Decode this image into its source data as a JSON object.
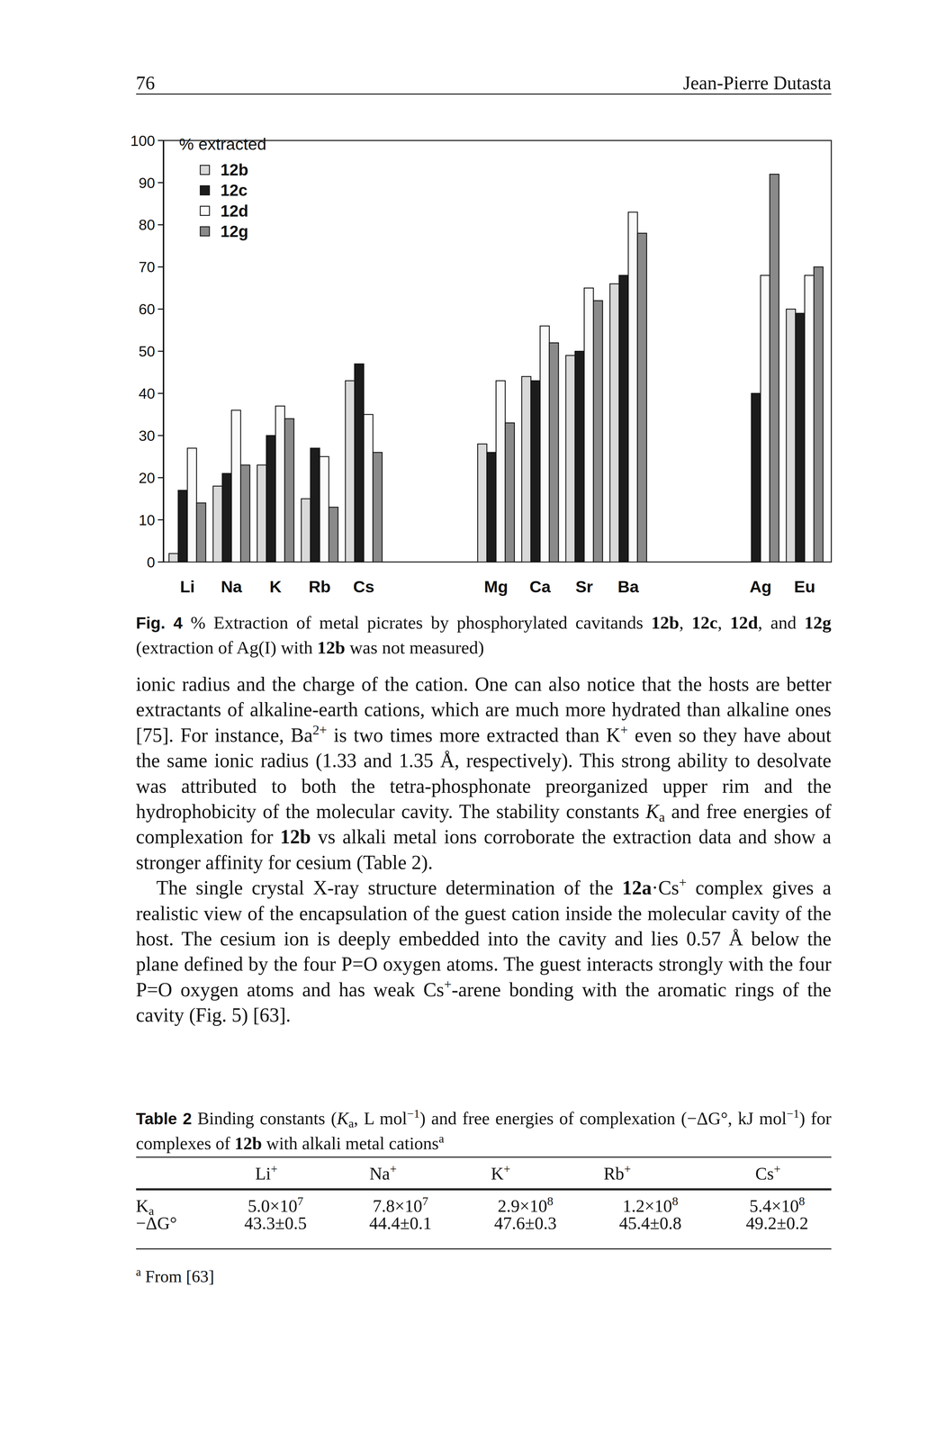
{
  "header": {
    "page": "76",
    "author": "Jean-Pierre Dutasta"
  },
  "chart_data": {
    "type": "bar",
    "y_label": "% extracted",
    "categories": [
      "Li",
      "Na",
      "K",
      "Rb",
      "Cs",
      null,
      null,
      "Mg",
      "Ca",
      "Sr",
      "Ba",
      null,
      null,
      "Ag",
      "Eu"
    ],
    "series": [
      {
        "name": "12b",
        "color": "#d9d9d9",
        "values": [
          2,
          18,
          23,
          15,
          43,
          null,
          null,
          28,
          44,
          49,
          66,
          null,
          null,
          null,
          60
        ]
      },
      {
        "name": "12c",
        "color": "#1c1c1c",
        "values": [
          17,
          21,
          30,
          27,
          47,
          null,
          null,
          26,
          43,
          50,
          68,
          null,
          null,
          40,
          59
        ]
      },
      {
        "name": "12d",
        "color": "#fafafa",
        "values": [
          27,
          36,
          37,
          25,
          35,
          null,
          null,
          43,
          56,
          65,
          83,
          null,
          null,
          68,
          68
        ]
      },
      {
        "name": "12g",
        "color": "#8a8a8a",
        "values": [
          14,
          23,
          34,
          13,
          26,
          null,
          null,
          33,
          52,
          62,
          78,
          null,
          null,
          92,
          70
        ]
      }
    ],
    "ylim": [
      0,
      100
    ],
    "yticks": [
      0,
      10,
      20,
      30,
      40,
      50,
      60,
      70,
      80,
      90,
      100
    ],
    "grid": false,
    "legend": "top-left"
  },
  "figure_caption": [
    {
      "label": "Fig. 4"
    },
    " % Extraction of metal picrates by phosphorylated cavitands ",
    {
      "b": "12b"
    },
    ", ",
    {
      "b": "12c"
    },
    ", ",
    {
      "b": "12d"
    },
    ", and ",
    {
      "b": "12g"
    },
    " (extraction of Ag(I) with ",
    {
      "b": "12b"
    },
    " was not measured)"
  ],
  "paragraphs": [
    [
      "ionic radius and the charge of the cation. One can also notice that the hosts are better extractants of alkaline-earth cations, which are much more hydrated than alkaline ones [75]. For instance, Ba",
      {
        "sup": "2+"
      },
      " is two times more extracted than K",
      {
        "sup": "+"
      },
      " even so they have about the same ionic radius (1.33 and 1.35 Å, respectively). This strong ability to desolvate was attributed to both the tetra-phosphonate preorganized upper rim and the hydrophobicity of the molecular cavity. The stability constants ",
      {
        "i": "K"
      },
      {
        "sub": "a"
      },
      " and free energies of complexation for ",
      {
        "b": "12b"
      },
      " vs alkali metal ions corroborate the extraction data and show a stronger affinity for cesium (Table 2)."
    ],
    [
      "The single crystal X-ray structure determination of the ",
      {
        "b": "12a"
      },
      "·Cs",
      {
        "sup": "+"
      },
      " complex gives a realistic view of the encapsulation of the guest cation inside the molecular cavity of the host. The cesium ion is deeply embedded into the cavity and lies 0.57 Å below the plane defined by the four P=O oxygen atoms. The guest interacts strongly with the four P=O oxygen atoms and has weak Cs",
      {
        "sup": "+"
      },
      "-arene bonding with the aromatic rings of the cavity (Fig. 5) [63]."
    ]
  ],
  "table": {
    "caption": [
      {
        "label": "Table 2"
      },
      " Binding constants (",
      {
        "i": "K"
      },
      {
        "sub": "a"
      },
      ", L mol",
      {
        "sup": "−1"
      },
      ") and free energies of complexation (−ΔG°, kJ mol",
      {
        "sup": "−1"
      },
      ") for complexes of ",
      {
        "b": "12b"
      },
      " with alkali metal cations",
      {
        "sup": "a"
      }
    ],
    "header": [
      [
        "Li",
        {
          "sup": "+"
        }
      ],
      [
        "Na",
        {
          "sup": "+"
        }
      ],
      [
        "K",
        {
          "sup": "+"
        }
      ],
      [
        "Rb",
        {
          "sup": "+"
        }
      ],
      [
        "Cs",
        {
          "sup": "+"
        }
      ]
    ],
    "rows": [
      [
        [
          "K",
          {
            "sub": "a"
          }
        ],
        [
          "5.0×10",
          {
            "sup": "7"
          }
        ],
        [
          "7.8×10",
          {
            "sup": "7"
          }
        ],
        [
          "2.9×10",
          {
            "sup": "8"
          }
        ],
        [
          "1.2×10",
          {
            "sup": "8"
          }
        ],
        [
          "5.4×10",
          {
            "sup": "8"
          }
        ]
      ],
      [
        [
          "−ΔG°"
        ],
        [
          "43.3±0.5"
        ],
        [
          "44.4±0.1"
        ],
        [
          "47.6±0.3"
        ],
        [
          "45.4±0.8"
        ],
        [
          "49.2±0.2"
        ]
      ]
    ],
    "footnote": [
      {
        "sup": "a"
      },
      " From [63]"
    ]
  }
}
